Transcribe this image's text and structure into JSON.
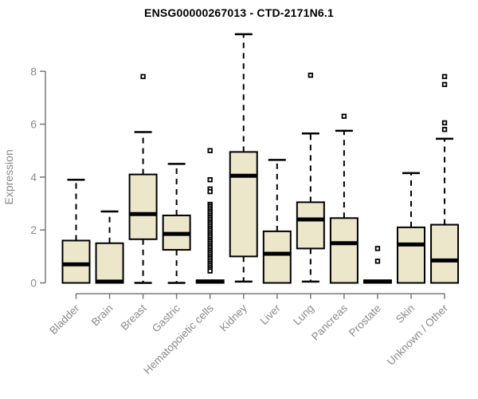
{
  "chart_data": {
    "type": "boxplot",
    "title": "ENSG00000267013 - CTD-2171N6.1",
    "ylabel": "Expression",
    "xlabel": "",
    "yticks": [
      0,
      2,
      4,
      6,
      8
    ],
    "ylim": [
      0,
      9.6
    ],
    "grid": false,
    "legend": "none",
    "categories": [
      "Bladder",
      "Brain",
      "Breast",
      "Gastric",
      "Hematopoietic cells",
      "Kidney",
      "Liver",
      "Lung",
      "Pancreas",
      "Prostate",
      "Skin",
      "Unknown / Other"
    ],
    "boxes": [
      {
        "category": "Bladder",
        "min": 0,
        "q1": 0,
        "median": 0.7,
        "q3": 1.6,
        "max": 3.9,
        "outliers": []
      },
      {
        "category": "Brain",
        "min": 0,
        "q1": 0,
        "median": 0.05,
        "q3": 1.5,
        "max": 2.7,
        "outliers": []
      },
      {
        "category": "Breast",
        "min": 0,
        "q1": 1.65,
        "median": 2.6,
        "q3": 4.1,
        "max": 5.7,
        "outliers": [
          7.8
        ]
      },
      {
        "category": "Gastric",
        "min": 0,
        "q1": 1.25,
        "median": 1.85,
        "q3": 2.55,
        "max": 4.5,
        "outliers": []
      },
      {
        "category": "Hematopoietic cells",
        "min": 0,
        "q1": 0,
        "median": 0.05,
        "q3": 0.1,
        "max": 0.1,
        "outliers": [
          5.0,
          3.9,
          3.55,
          3.45,
          2.97,
          2.9,
          2.83,
          2.76,
          2.69,
          2.62,
          2.55,
          2.48,
          2.41,
          2.34,
          2.27,
          2.2,
          2.13,
          2.06,
          1.99,
          1.92,
          1.85,
          1.78,
          1.71,
          1.64,
          1.57,
          1.5,
          1.43,
          1.36,
          1.29,
          1.22,
          1.15,
          1.08,
          1.01,
          0.94,
          0.87,
          0.8,
          0.73,
          0.66,
          0.59,
          0.52,
          0.45
        ]
      },
      {
        "category": "Kidney",
        "min": 0.05,
        "q1": 1.0,
        "median": 4.05,
        "q3": 4.95,
        "max": 9.4,
        "outliers": []
      },
      {
        "category": "Liver",
        "min": 0,
        "q1": 0,
        "median": 1.1,
        "q3": 1.95,
        "max": 4.65,
        "outliers": []
      },
      {
        "category": "Lung",
        "min": 0.05,
        "q1": 1.3,
        "median": 2.4,
        "q3": 3.05,
        "max": 5.65,
        "outliers": [
          7.85
        ]
      },
      {
        "category": "Pancreas",
        "min": 0,
        "q1": 0,
        "median": 1.5,
        "q3": 2.45,
        "max": 5.75,
        "outliers": [
          6.3
        ]
      },
      {
        "category": "Prostate",
        "min": 0,
        "q1": 0,
        "median": 0.05,
        "q3": 0.1,
        "max": 0.1,
        "outliers": [
          1.3,
          0.82
        ]
      },
      {
        "category": "Skin",
        "min": 0,
        "q1": 0,
        "median": 1.45,
        "q3": 2.1,
        "max": 4.15,
        "outliers": []
      },
      {
        "category": "Unknown / Other",
        "min": 0,
        "q1": 0,
        "median": 0.85,
        "q3": 2.2,
        "max": 5.45,
        "outliers": [
          7.8,
          7.5,
          6.05,
          5.8
        ]
      }
    ],
    "colors": {
      "box_fill": "#ECE6CB",
      "box_stroke": "#000000",
      "median": "#000000",
      "whisker": "#000000",
      "outlier_stroke": "#000000",
      "axis_line": "#787878",
      "tick_text": "#8A8A8A",
      "title_text": "#000000",
      "background": "#FFFFFF"
    }
  }
}
